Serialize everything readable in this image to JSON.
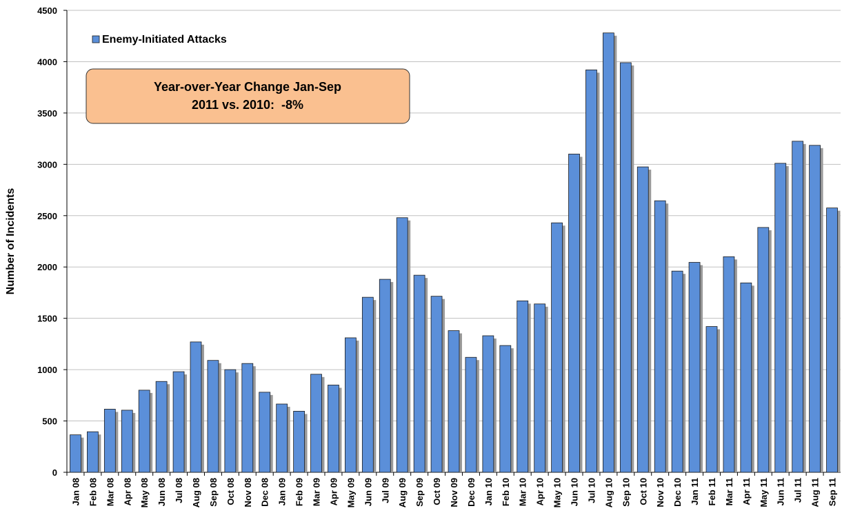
{
  "chart_data": {
    "type": "bar",
    "y_label": "Number of Incidents",
    "annotation": [
      "Year-over-Year Change Jan-Sep",
      "2011 vs. 2010:  -8%"
    ],
    "categories": [
      "Jan 08",
      "Feb 08",
      "Mar 08",
      "Apr 08",
      "May 08",
      "Jun 08",
      "Jul 08",
      "Aug 08",
      "Sep 08",
      "Oct 08",
      "Nov 08",
      "Dec 08",
      "Jan 09",
      "Feb 09",
      "Mar 09",
      "Apr 09",
      "May 09",
      "Jun 09",
      "Jul 09",
      "Aug 09",
      "Sep 09",
      "Oct 09",
      "Nov 09",
      "Dec 09",
      "Jan 10",
      "Feb 10",
      "Mar 10",
      "Apr 10",
      "May 10",
      "Jun 10",
      "Jul 10",
      "Aug 10",
      "Sep 10",
      "Oct 10",
      "Nov 10",
      "Dec 10",
      "Jan 11",
      "Feb 11",
      "Mar 11",
      "Apr 11",
      "May 11",
      "Jun 11",
      "Jul 11",
      "Aug 11",
      "Sep 11"
    ],
    "series": [
      {
        "name": "Enemy-Initiated Attacks",
        "color": "#5b8fd9",
        "values": [
          365,
          395,
          615,
          605,
          800,
          885,
          980,
          1270,
          1090,
          1000,
          1060,
          780,
          665,
          595,
          955,
          850,
          1310,
          1705,
          1880,
          2480,
          1920,
          1715,
          1380,
          1120,
          1330,
          1235,
          1670,
          1640,
          2430,
          3100,
          3920,
          4280,
          3990,
          2975,
          2645,
          1960,
          2045,
          1420,
          2100,
          1845,
          2385,
          3010,
          3225,
          3185,
          2575
        ]
      }
    ],
    "ylim": [
      0,
      4500
    ],
    "yticks": [
      0,
      500,
      1000,
      1500,
      2000,
      2500,
      3000,
      3500,
      4000,
      4500
    ],
    "grid": true
  }
}
